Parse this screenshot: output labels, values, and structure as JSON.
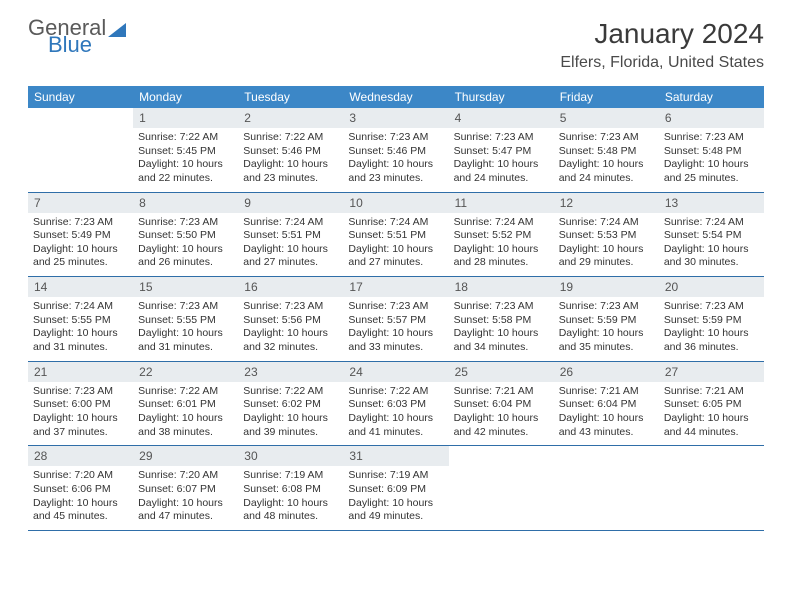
{
  "logo": {
    "text1": "General",
    "text2": "Blue"
  },
  "title": "January 2024",
  "location": "Elfers, Florida, United States",
  "colors": {
    "header_bar": "#3c87c7",
    "daynum_bg": "#e8ecef",
    "row_border": "#2f6ea8",
    "logo_gray": "#5a5a5a",
    "logo_blue": "#2f77bb"
  },
  "days_of_week": [
    "Sunday",
    "Monday",
    "Tuesday",
    "Wednesday",
    "Thursday",
    "Friday",
    "Saturday"
  ],
  "weeks": [
    [
      null,
      {
        "n": "1",
        "sunrise": "7:22 AM",
        "sunset": "5:45 PM",
        "daylight": "10 hours and 22 minutes."
      },
      {
        "n": "2",
        "sunrise": "7:22 AM",
        "sunset": "5:46 PM",
        "daylight": "10 hours and 23 minutes."
      },
      {
        "n": "3",
        "sunrise": "7:23 AM",
        "sunset": "5:46 PM",
        "daylight": "10 hours and 23 minutes."
      },
      {
        "n": "4",
        "sunrise": "7:23 AM",
        "sunset": "5:47 PM",
        "daylight": "10 hours and 24 minutes."
      },
      {
        "n": "5",
        "sunrise": "7:23 AM",
        "sunset": "5:48 PM",
        "daylight": "10 hours and 24 minutes."
      },
      {
        "n": "6",
        "sunrise": "7:23 AM",
        "sunset": "5:48 PM",
        "daylight": "10 hours and 25 minutes."
      }
    ],
    [
      {
        "n": "7",
        "sunrise": "7:23 AM",
        "sunset": "5:49 PM",
        "daylight": "10 hours and 25 minutes."
      },
      {
        "n": "8",
        "sunrise": "7:23 AM",
        "sunset": "5:50 PM",
        "daylight": "10 hours and 26 minutes."
      },
      {
        "n": "9",
        "sunrise": "7:24 AM",
        "sunset": "5:51 PM",
        "daylight": "10 hours and 27 minutes."
      },
      {
        "n": "10",
        "sunrise": "7:24 AM",
        "sunset": "5:51 PM",
        "daylight": "10 hours and 27 minutes."
      },
      {
        "n": "11",
        "sunrise": "7:24 AM",
        "sunset": "5:52 PM",
        "daylight": "10 hours and 28 minutes."
      },
      {
        "n": "12",
        "sunrise": "7:24 AM",
        "sunset": "5:53 PM",
        "daylight": "10 hours and 29 minutes."
      },
      {
        "n": "13",
        "sunrise": "7:24 AM",
        "sunset": "5:54 PM",
        "daylight": "10 hours and 30 minutes."
      }
    ],
    [
      {
        "n": "14",
        "sunrise": "7:24 AM",
        "sunset": "5:55 PM",
        "daylight": "10 hours and 31 minutes."
      },
      {
        "n": "15",
        "sunrise": "7:23 AM",
        "sunset": "5:55 PM",
        "daylight": "10 hours and 31 minutes."
      },
      {
        "n": "16",
        "sunrise": "7:23 AM",
        "sunset": "5:56 PM",
        "daylight": "10 hours and 32 minutes."
      },
      {
        "n": "17",
        "sunrise": "7:23 AM",
        "sunset": "5:57 PM",
        "daylight": "10 hours and 33 minutes."
      },
      {
        "n": "18",
        "sunrise": "7:23 AM",
        "sunset": "5:58 PM",
        "daylight": "10 hours and 34 minutes."
      },
      {
        "n": "19",
        "sunrise": "7:23 AM",
        "sunset": "5:59 PM",
        "daylight": "10 hours and 35 minutes."
      },
      {
        "n": "20",
        "sunrise": "7:23 AM",
        "sunset": "5:59 PM",
        "daylight": "10 hours and 36 minutes."
      }
    ],
    [
      {
        "n": "21",
        "sunrise": "7:23 AM",
        "sunset": "6:00 PM",
        "daylight": "10 hours and 37 minutes."
      },
      {
        "n": "22",
        "sunrise": "7:22 AM",
        "sunset": "6:01 PM",
        "daylight": "10 hours and 38 minutes."
      },
      {
        "n": "23",
        "sunrise": "7:22 AM",
        "sunset": "6:02 PM",
        "daylight": "10 hours and 39 minutes."
      },
      {
        "n": "24",
        "sunrise": "7:22 AM",
        "sunset": "6:03 PM",
        "daylight": "10 hours and 41 minutes."
      },
      {
        "n": "25",
        "sunrise": "7:21 AM",
        "sunset": "6:04 PM",
        "daylight": "10 hours and 42 minutes."
      },
      {
        "n": "26",
        "sunrise": "7:21 AM",
        "sunset": "6:04 PM",
        "daylight": "10 hours and 43 minutes."
      },
      {
        "n": "27",
        "sunrise": "7:21 AM",
        "sunset": "6:05 PM",
        "daylight": "10 hours and 44 minutes."
      }
    ],
    [
      {
        "n": "28",
        "sunrise": "7:20 AM",
        "sunset": "6:06 PM",
        "daylight": "10 hours and 45 minutes."
      },
      {
        "n": "29",
        "sunrise": "7:20 AM",
        "sunset": "6:07 PM",
        "daylight": "10 hours and 47 minutes."
      },
      {
        "n": "30",
        "sunrise": "7:19 AM",
        "sunset": "6:08 PM",
        "daylight": "10 hours and 48 minutes."
      },
      {
        "n": "31",
        "sunrise": "7:19 AM",
        "sunset": "6:09 PM",
        "daylight": "10 hours and 49 minutes."
      },
      null,
      null,
      null
    ]
  ],
  "labels": {
    "sunrise": "Sunrise: ",
    "sunset": "Sunset: ",
    "daylight": "Daylight: "
  }
}
